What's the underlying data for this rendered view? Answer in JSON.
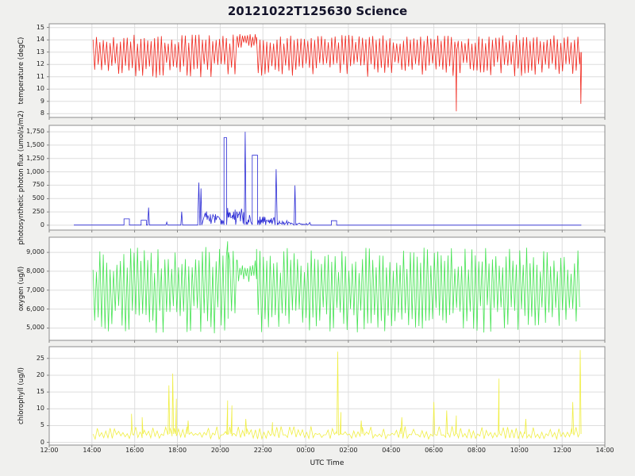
{
  "page": {
    "title": "20121022T125630 Science",
    "xlabel": "UTC Time",
    "background": "#f0f0ee"
  },
  "x_axis": {
    "tick_hours": [
      12,
      14,
      16,
      18,
      20,
      22,
      24,
      26,
      28,
      30,
      32,
      34,
      36,
      38
    ],
    "tick_labels": [
      "12:00",
      "14:00",
      "16:00",
      "18:00",
      "20:00",
      "22:00",
      "00:00",
      "02:00",
      "04:00",
      "06:00",
      "08:00",
      "10:00",
      "12:00",
      "14:00"
    ]
  },
  "chart_data": [
    {
      "type": "line",
      "name": "temperature",
      "color": "#f0281e",
      "ylabel": "temperature (degC)",
      "ylim": [
        7.7,
        15.3
      ],
      "yticks": [
        8,
        9,
        10,
        11,
        12,
        13,
        14,
        15
      ],
      "ytick_labels": [
        "8",
        "9",
        "10",
        "11",
        "12",
        "13",
        "14",
        "15"
      ],
      "segments": [
        {
          "kind": "osc",
          "t0": 14.05,
          "t1": 20.8,
          "lo": 10.9,
          "hi": 14.45,
          "period": 0.16,
          "jitter": 0.8,
          "jitter_lo": 1.3
        },
        {
          "kind": "osc",
          "t0": 20.8,
          "t1": 21.7,
          "lo": 13.3,
          "hi": 14.5,
          "period": 0.12,
          "jitter": 0.3,
          "jitter_lo": 0.5
        },
        {
          "kind": "osc",
          "t0": 21.7,
          "t1": 36.85,
          "lo": 11.0,
          "hi": 14.4,
          "period": 0.16,
          "jitter": 0.8,
          "jitter_lo": 1.2
        }
      ],
      "spikes": [
        {
          "t": 31.05,
          "peak": 8.2,
          "base": 13.2,
          "width": 0.03
        },
        {
          "t": 36.88,
          "peak": 8.8,
          "base": 13.0,
          "width": 0.03
        }
      ]
    },
    {
      "type": "line",
      "name": "photosynthetic-photon-flux",
      "color": "#2b2bd5",
      "ylabel": "photosynthetic photon flux (umol/s/m2)",
      "ylim": [
        -90,
        1870
      ],
      "yticks": [
        0,
        250,
        500,
        750,
        1000,
        1250,
        1500,
        1750
      ],
      "ytick_labels": [
        "0",
        "250",
        "500",
        "750",
        "1,000",
        "1,250",
        "1,500",
        "1,750"
      ],
      "segments": [
        {
          "kind": "flat",
          "t0": 13.15,
          "t1": 15.45,
          "y": 3
        },
        {
          "kind": "rect",
          "t0": 15.5,
          "t1": 15.75,
          "y": 120,
          "base": 3
        },
        {
          "kind": "flat",
          "t0": 15.78,
          "t1": 16.25,
          "y": 3
        },
        {
          "kind": "rect",
          "t0": 16.3,
          "t1": 16.55,
          "y": 95,
          "base": 3
        },
        {
          "kind": "flat",
          "t0": 16.7,
          "t1": 18.1,
          "y": 3
        },
        {
          "kind": "flat",
          "t0": 18.3,
          "t1": 18.95,
          "y": 4
        },
        {
          "kind": "osc",
          "t0": 19.3,
          "t1": 19.9,
          "lo": 3,
          "hi": 260,
          "period": 0.06,
          "jitter": 200
        },
        {
          "kind": "osc",
          "t0": 19.95,
          "t1": 20.15,
          "lo": 3,
          "hi": 150,
          "period": 0.06,
          "jitter": 110
        },
        {
          "kind": "rect",
          "t0": 20.18,
          "t1": 20.3,
          "y": 1640,
          "base": 8
        },
        {
          "kind": "osc",
          "t0": 20.35,
          "t1": 21.1,
          "lo": 4,
          "hi": 330,
          "period": 0.05,
          "jitter": 260
        },
        {
          "kind": "osc",
          "t0": 21.25,
          "t1": 21.45,
          "lo": 3,
          "hi": 200,
          "period": 0.06,
          "jitter": 150
        },
        {
          "kind": "rect",
          "t0": 21.5,
          "t1": 21.75,
          "y": 1310,
          "base": 10
        },
        {
          "kind": "osc",
          "t0": 21.8,
          "t1": 22.55,
          "lo": 3,
          "hi": 170,
          "period": 0.06,
          "jitter": 130
        },
        {
          "kind": "osc",
          "t0": 22.7,
          "t1": 23.4,
          "lo": 2,
          "hi": 95,
          "period": 0.07,
          "jitter": 70
        },
        {
          "kind": "osc",
          "t0": 23.55,
          "t1": 24.2,
          "lo": 1,
          "hi": 55,
          "period": 0.08,
          "jitter": 40
        },
        {
          "kind": "flat",
          "t0": 24.25,
          "t1": 25.15,
          "y": 2
        },
        {
          "kind": "rect",
          "t0": 25.2,
          "t1": 25.45,
          "y": 85,
          "base": 2
        },
        {
          "kind": "flat",
          "t0": 25.5,
          "t1": 36.9,
          "y": 2
        }
      ],
      "spikes": [
        {
          "t": 16.65,
          "peak": 330,
          "base": 3
        },
        {
          "t": 17.5,
          "peak": 60,
          "base": 3
        },
        {
          "t": 18.2,
          "peak": 255,
          "base": 4
        },
        {
          "t": 19.0,
          "peak": 800,
          "base": 5,
          "width": 0.05
        },
        {
          "t": 19.1,
          "peak": 690,
          "base": 5
        },
        {
          "t": 21.17,
          "peak": 1750,
          "base": 10
        },
        {
          "t": 22.62,
          "peak": 1050,
          "base": 5,
          "width": 0.05
        },
        {
          "t": 23.5,
          "peak": 745,
          "base": 3
        }
      ]
    },
    {
      "type": "line",
      "name": "oxygen",
      "color": "#45e352",
      "ylabel": "oxygen (ug/l)",
      "ylim": [
        4350,
        9800
      ],
      "yticks": [
        5000,
        6000,
        7000,
        8000,
        9000
      ],
      "ytick_labels": [
        "5,000",
        "6,000",
        "7,000",
        "8,000",
        "9,000"
      ],
      "segments": [
        {
          "kind": "osc",
          "t0": 14.05,
          "t1": 20.8,
          "lo": 4700,
          "hi": 9300,
          "period": 0.16,
          "jitter": 1400,
          "jitter_lo": 1500
        },
        {
          "kind": "osc",
          "t0": 20.8,
          "t1": 21.7,
          "lo": 7400,
          "hi": 8600,
          "period": 0.12,
          "jitter": 500,
          "jitter_lo": 400
        },
        {
          "kind": "osc",
          "t0": 21.7,
          "t1": 36.85,
          "lo": 4750,
          "hi": 9250,
          "period": 0.16,
          "jitter": 1400,
          "jitter_lo": 1500
        }
      ],
      "spikes": [
        {
          "t": 20.35,
          "peak": 9580,
          "base": 9000
        }
      ]
    },
    {
      "type": "line",
      "name": "chlorophyll",
      "color": "#f0ee42",
      "ylabel": "chlorophyll (ug/l)",
      "ylim": [
        -0.8,
        28.5
      ],
      "yticks": [
        0,
        5,
        10,
        15,
        20,
        25
      ],
      "ytick_labels": [
        "0",
        "5",
        "10",
        "15",
        "20",
        "25"
      ],
      "spike_base": 2.5,
      "segments": [
        {
          "kind": "osc",
          "t0": 14.05,
          "t1": 36.85,
          "lo": 1.0,
          "hi": 4.8,
          "period": 0.2,
          "jitter": 2.6,
          "jitter_lo": 1.4
        }
      ],
      "spikes": [
        {
          "t": 15.85,
          "peak": 8.5
        },
        {
          "t": 16.35,
          "peak": 7.5
        },
        {
          "t": 17.6,
          "peak": 17
        },
        {
          "t": 17.78,
          "peak": 20.5
        },
        {
          "t": 17.95,
          "peak": 13
        },
        {
          "t": 18.5,
          "peak": 6.5
        },
        {
          "t": 20.35,
          "peak": 12.5
        },
        {
          "t": 20.55,
          "peak": 11
        },
        {
          "t": 21.2,
          "peak": 7
        },
        {
          "t": 22.45,
          "peak": 6
        },
        {
          "t": 25.5,
          "peak": 27
        },
        {
          "t": 25.65,
          "peak": 9
        },
        {
          "t": 26.6,
          "peak": 6.5
        },
        {
          "t": 28.5,
          "peak": 7.5
        },
        {
          "t": 30.0,
          "peak": 12
        },
        {
          "t": 30.6,
          "peak": 9.5
        },
        {
          "t": 31.05,
          "peak": 8
        },
        {
          "t": 33.05,
          "peak": 19
        },
        {
          "t": 34.3,
          "peak": 7
        },
        {
          "t": 36.5,
          "peak": 12
        },
        {
          "t": 36.85,
          "peak": 27.5
        }
      ]
    }
  ]
}
